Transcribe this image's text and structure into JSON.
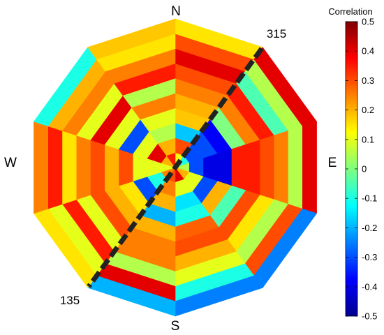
{
  "chart_data": {
    "type": "heatmap",
    "title": "",
    "directions": {
      "north": "N",
      "east": "E",
      "south": "S",
      "west": "W"
    },
    "colorbar": {
      "title": "Correlation",
      "range": [
        -0.5,
        0.5
      ],
      "ticks": [
        "0.5",
        "0.4",
        "0.3",
        "0.2",
        "0.1",
        "0",
        "-0.1",
        "-0.2",
        "-0.3",
        "-0.4",
        "-0.5"
      ]
    },
    "sector_line": {
      "label_start": "315",
      "label_end": "135"
    },
    "sectors": 10,
    "rings": 10,
    "values": [
      [
        0.12,
        0.3,
        -0.18,
        0.18,
        0.2,
        0.25,
        0.3,
        0.4,
        0.3,
        0.15
      ],
      [
        -0.1,
        -0.3,
        -0.3,
        -0.38,
        0.0,
        0.25,
        0.35,
        -0.05,
        0.05,
        0.4
      ],
      [
        0.05,
        -0.3,
        -0.4,
        -0.4,
        0.35,
        0.35,
        0.3,
        0.25,
        0.05,
        0.4
      ],
      [
        0.2,
        0.1,
        -0.3,
        0.2,
        -0.05,
        0.3,
        0.15,
        0.05,
        0.3,
        -0.25
      ],
      [
        0.4,
        0.1,
        -0.15,
        -0.1,
        0.28,
        0.3,
        0.2,
        0.1,
        -0.1,
        -0.25
      ],
      [
        0.3,
        0.25,
        0.2,
        -0.2,
        0.2,
        0.25,
        0.25,
        0.05,
        0.4,
        -0.2
      ],
      [
        0.25,
        -0.1,
        -0.3,
        0.15,
        0.2,
        0.3,
        0.1,
        0.35,
        0.1,
        0.15
      ],
      [
        0.1,
        0.1,
        0.1,
        0.3,
        0.2,
        0.3,
        0.25,
        0.15,
        0.35,
        0.25
      ],
      [
        0.2,
        0.4,
        0.1,
        -0.3,
        0.1,
        0.4,
        0.1,
        0.25,
        0.2,
        -0.1
      ],
      [
        0.35,
        0.2,
        0.05,
        0.1,
        0.25,
        0.05,
        0.35,
        0.25,
        0.15,
        0.18
      ]
    ]
  }
}
